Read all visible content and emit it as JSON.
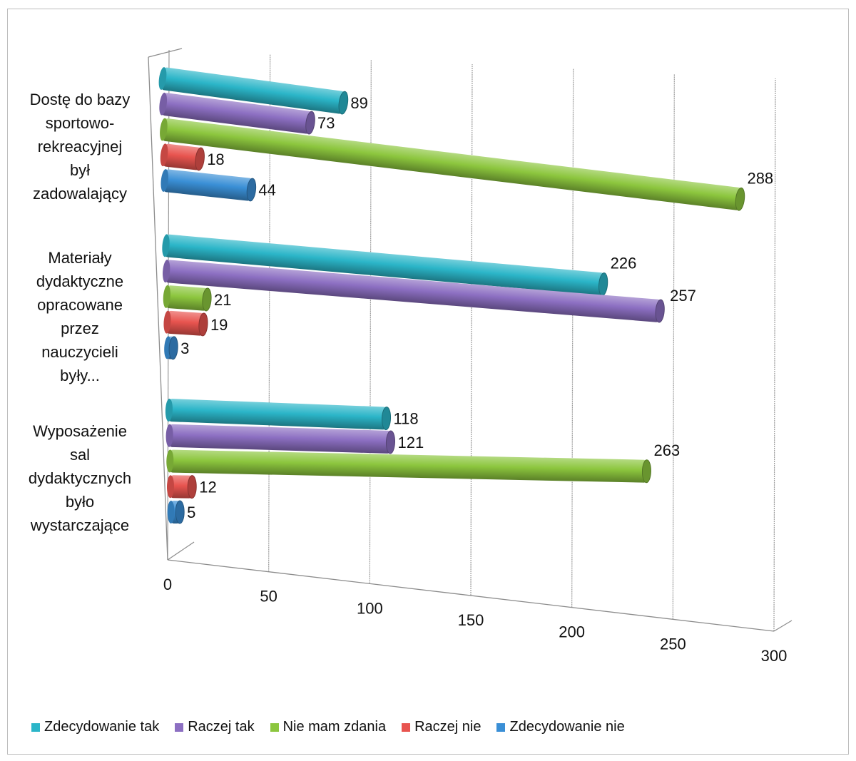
{
  "chart_data": {
    "type": "bar",
    "orientation": "horizontal",
    "style": "3d-cylinder",
    "categories": [
      "Dostę do bazy sportowo-rekreacyjnej był zadowalający",
      "Materiały dydaktyczne opracowane przez nauczycieli były...",
      "Wyposażenie sal dydaktycznych było wystarczające"
    ],
    "category_lines": [
      [
        "Dostę do bazy",
        "sportowo-",
        "rekreacyjnej",
        "był",
        "zadowalający"
      ],
      [
        "Materiały",
        "dydaktyczne",
        "opracowane",
        "przez",
        "nauczycieli",
        "były..."
      ],
      [
        "Wyposażenie",
        "sal",
        "dydaktycznych",
        "było",
        "wystarczające"
      ]
    ],
    "series": [
      {
        "name": "Zdecydowanie tak",
        "color": "#2bb5c8",
        "values": [
          89,
          226,
          118
        ]
      },
      {
        "name": "Raczej tak",
        "color": "#8c6fc2",
        "values": [
          73,
          257,
          121
        ]
      },
      {
        "name": "Nie mam zdania",
        "color": "#8cc63e",
        "values": [
          288,
          21,
          263
        ]
      },
      {
        "name": "Raczej nie",
        "color": "#e8544f",
        "values": [
          18,
          19,
          12
        ]
      },
      {
        "name": "Zdecydowanie nie",
        "color": "#3a8fd6",
        "values": [
          44,
          3,
          5
        ]
      }
    ],
    "xticks": [
      "0",
      "50",
      "100",
      "150",
      "200",
      "250",
      "300"
    ],
    "xlim": [
      0,
      300
    ],
    "grid": true,
    "legend_position": "bottom"
  }
}
